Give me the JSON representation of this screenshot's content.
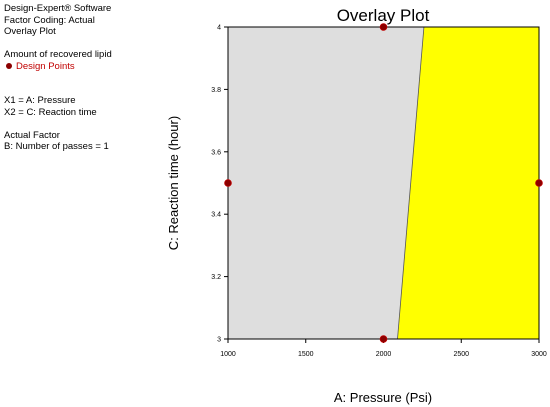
{
  "info": {
    "software": "Design-Expert® Software",
    "coding": "Factor Coding: Actual",
    "plot_kind": "Overlay Plot",
    "response": "Amount of recovered lipid",
    "legend_label": "Design Points",
    "x1": "X1 = A: Pressure",
    "x2": "X2 = C: Reaction time",
    "actual_factor_title": "Actual Factor",
    "actual_factor": "B: Number of passes = 1"
  },
  "colors": {
    "infeasible": "#dedede",
    "feasible": "#ffff00",
    "point": "#8b0000",
    "point_stroke": "#c00000"
  },
  "chart_data": {
    "type": "scatter",
    "title": "Overlay Plot",
    "xlabel": "A: Pressure (Psi)",
    "ylabel": "C: Reaction time (hour)",
    "xlim": [
      1000,
      3000
    ],
    "ylim": [
      3,
      4
    ],
    "x_ticks": [
      "1000",
      "1500",
      "2000",
      "2500",
      "3000"
    ],
    "y_ticks": [
      "3",
      "3.2",
      "3.4",
      "3.6",
      "3.8",
      "4"
    ],
    "feasible_boundary": [
      {
        "x": 2090,
        "y": 3
      },
      {
        "x": 2260,
        "y": 4
      }
    ],
    "points": [
      {
        "x": 2000,
        "y": 4
      },
      {
        "x": 1000,
        "y": 3.5
      },
      {
        "x": 3000,
        "y": 3.5
      },
      {
        "x": 2000,
        "y": 3
      }
    ]
  }
}
